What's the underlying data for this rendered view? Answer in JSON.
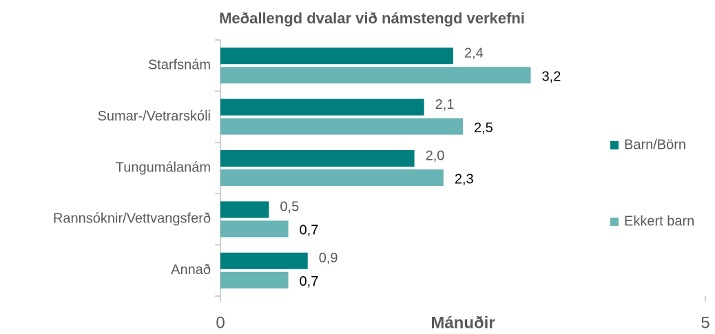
{
  "chart_data": {
    "type": "bar",
    "orientation": "horizontal",
    "title": "Meðallengd dvalar við námstengd verkefni",
    "x_label": "Mánuðir",
    "categories": [
      "Starfsnám",
      "Sumar-/Vetrarskóli",
      "Tungumálanám",
      "Rannsóknir/Vettvangsferð",
      "Annað"
    ],
    "series": [
      {
        "name": "Barn/Börn",
        "color": "#007f7e",
        "values": [
          2.4,
          2.1,
          2.0,
          0.5,
          0.9
        ],
        "value_labels": [
          "2,4",
          "2,1",
          "2,0",
          "0,5",
          "0,9"
        ]
      },
      {
        "name": "Ekkert barn",
        "color": "#69b4b4",
        "values": [
          3.2,
          2.5,
          2.3,
          0.7,
          0.7
        ],
        "value_labels": [
          "3,2",
          "2,5",
          "2,3",
          "0,7",
          "0,7"
        ]
      }
    ],
    "xlim": [
      0,
      5
    ],
    "xticks": [
      0,
      5
    ],
    "legend": "right"
  }
}
